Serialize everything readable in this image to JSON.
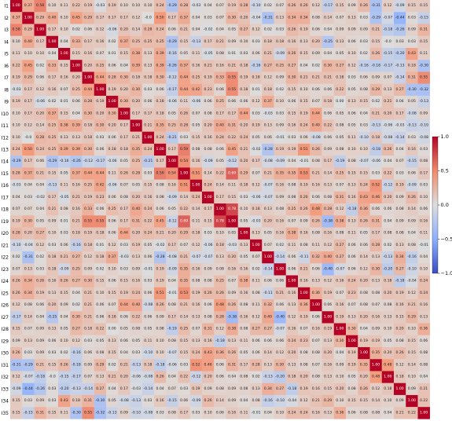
{
  "chart_data": {
    "type": "heatmap",
    "labels": [
      "I1",
      "I2",
      "I3",
      "I4",
      "I5",
      "I6",
      "I7",
      "I8",
      "I9",
      "I10",
      "I11",
      "I12",
      "I13",
      "I14",
      "I15",
      "I16",
      "I17",
      "I18",
      "I19",
      "I20",
      "I21",
      "I22",
      "I23",
      "I24",
      "I25",
      "I26",
      "I27",
      "I28",
      "I29",
      "I30",
      "I31",
      "I32",
      "I33",
      "I34",
      "I35"
    ],
    "color_range": [
      -1.0,
      1.0
    ],
    "colorbar_ticks": [
      "1.0",
      "0.5",
      "0.0",
      "−0.5",
      "−1.0"
    ],
    "colorbar_tick_values": [
      1.0,
      0.5,
      0.0,
      -0.5,
      -1.0
    ],
    "colormap": "coolwarm",
    "colormap_stops": [
      "#3b4cc0",
      "#dddddd",
      "#b40426"
    ],
    "rows": [
      [
        1,
        0.37,
        0.58,
        0.1,
        0.11,
        0.22,
        0.19,
        -0.03,
        0.19,
        0.1,
        0.1,
        0.1,
        0.24,
        -0.29,
        0.28,
        -0.03,
        0.04,
        0.07,
        0.19,
        0.28,
        -0.1,
        0.02,
        0.07,
        0.26,
        0.26,
        0.12,
        -0.17,
        0.15,
        0.09,
        0.26,
        -0.31,
        0.12,
        -0.09,
        0.15,
        0.15
      ],
      [
        0.37,
        1,
        0.29,
        0.4,
        0.1,
        0.45,
        0.29,
        0.17,
        0.17,
        0.17,
        0.12,
        -0.0,
        0.5,
        0.17,
        0.37,
        0.04,
        0.03,
        0.07,
        0.3,
        0.2,
        -0.04,
        -0.31,
        0.13,
        0.34,
        0.34,
        0.08,
        0.14,
        0.07,
        0.13,
        0.03,
        -0.29,
        -0.07,
        -0.44,
        0.03,
        -0.15
      ],
      [
        0.58,
        0.29,
        1,
        0.17,
        0.1,
        0.02,
        0.06,
        0.12,
        -0.06,
        0.2,
        0.14,
        0.28,
        0.24,
        0.06,
        0.21,
        0.04,
        -0.02,
        0.04,
        0.05,
        0.27,
        0.12,
        0.02,
        0.03,
        0.26,
        0.19,
        0.06,
        0.04,
        0.09,
        0.09,
        0.09,
        0.21,
        -0.18,
        -0.26,
        0.09,
        0.31
      ],
      [
        0.1,
        0.4,
        0.17,
        1,
        0.04,
        0.33,
        0.17,
        0.16,
        0.02,
        0.37,
        0.25,
        0.25,
        0.25,
        -0.29,
        0.15,
        -0.13,
        0.17,
        0.21,
        0.09,
        0.1,
        0.03,
        0.18,
        0.18,
        0.16,
        0.13,
        0.2,
        -0.25,
        0.13,
        0.06,
        0.03,
        0.15,
        -0.0,
        0.03,
        0.03,
        0.15
      ],
      [
        0.11,
        0.1,
        0.1,
        0.04,
        1,
        0.15,
        0.16,
        0.07,
        0.01,
        0.15,
        0.38,
        0.13,
        0.39,
        -0.16,
        0.05,
        0.11,
        -0.05,
        0.08,
        0.01,
        0.03,
        0.06,
        0.21,
        -0.09,
        0.26,
        0.15,
        0.09,
        0.04,
        0.05,
        0.1,
        0.02,
        0.26,
        -0.15,
        -0.2,
        0.43,
        0.11
      ],
      [
        0.22,
        0.45,
        0.02,
        0.33,
        0.15,
        1,
        0.2,
        0.25,
        0.06,
        0.04,
        0.39,
        0.13,
        0.39,
        -0.26,
        0.37,
        0.16,
        0.21,
        0.16,
        0.21,
        0.18,
        -0.16,
        0.27,
        0.25,
        0.27,
        0.04,
        0.02,
        0.3,
        0.27,
        0.12,
        -0.16,
        -0.18,
        -0.17,
        -0.13,
        0.18,
        -0.3
      ],
      [
        0.19,
        0.29,
        0.06,
        0.17,
        0.16,
        0.2,
        1,
        0.44,
        0.28,
        0.3,
        0.18,
        0.18,
        0.3,
        -0.12,
        0.44,
        0.25,
        0.19,
        0.33,
        0.55,
        0.19,
        0.18,
        0.12,
        0.09,
        0.3,
        0.21,
        0.21,
        0.21,
        0.18,
        0.03,
        0.06,
        0.09,
        0.07,
        -0.14,
        0.31,
        0.55
      ],
      [
        -0.03,
        0.17,
        0.12,
        0.16,
        0.07,
        0.25,
        0.44,
        1,
        0.19,
        0.2,
        0.3,
        0.03,
        0.06,
        -0.17,
        0.44,
        0.42,
        0.23,
        0.06,
        0.55,
        0.18,
        0.01,
        0.18,
        0.02,
        0.15,
        0.1,
        0.06,
        0.06,
        0.22,
        0.05,
        0.08,
        0.29,
        0.13,
        0.27,
        -0.3,
        -0.32
      ],
      [
        0.19,
        0.17,
        -0.06,
        0.02,
        0.01,
        0.06,
        0.28,
        0.19,
        1,
        0.3,
        0.2,
        0.06,
        0.18,
        -0.06,
        0.11,
        -0.06,
        0.06,
        0.25,
        0.06,
        0.06,
        0.12,
        0.37,
        0.1,
        0.06,
        0.15,
        0.07,
        0.18,
        0.0,
        0.13,
        0.15,
        0.02,
        0.21,
        0.04,
        0.05,
        -0.13
      ],
      [
        0.1,
        0.17,
        0.2,
        0.37,
        0.15,
        0.04,
        0.3,
        0.2,
        0.3,
        1,
        0.17,
        0.17,
        0.18,
        0.05,
        0.26,
        0.07,
        0.08,
        0.17,
        0.17,
        0.44,
        0.03,
        -0.03,
        0.03,
        0.15,
        0.19,
        0.44,
        0.06,
        0.05,
        0.06,
        0.04,
        0.21,
        0.2,
        0.17,
        -0.08,
        0.09
      ],
      [
        0.1,
        0.12,
        0.14,
        0.25,
        0.38,
        0.39,
        0.18,
        0.3,
        0.2,
        0.17,
        1,
        0.21,
        0.35,
        0.25,
        0.28,
        0.05,
        0.2,
        0.4,
        0.31,
        0.2,
        0.19,
        0.13,
        0.09,
        0.16,
        0.24,
        0.4,
        0.22,
        0.08,
        0.05,
        0.03,
        -0.13,
        -0.06,
        -0.03,
        -0.13,
        -0.1
      ],
      [
        0.1,
        -0.0,
        0.28,
        0.25,
        0.13,
        0.13,
        0.18,
        0.03,
        0.06,
        0.17,
        0.21,
        1,
        0.24,
        -0.21,
        0.03,
        0.15,
        0.16,
        0.24,
        0.22,
        0.24,
        0.05,
        0.06,
        -0.01,
        0.03,
        0.06,
        -0.08,
        0.06,
        0.05,
        0.11,
        -0.1,
        0.18,
        -0.08,
        -0.14,
        0.03,
        -0.08
      ],
      [
        0.24,
        0.5,
        0.24,
        0.25,
        0.39,
        0.39,
        0.3,
        0.06,
        0.18,
        0.18,
        0.35,
        0.24,
        1,
        0.17,
        0.59,
        0.08,
        0.08,
        0.06,
        0.45,
        0.21,
        -0.02,
        -0.28,
        0.19,
        0.19,
        0.51,
        0.26,
        0.09,
        0.08,
        0.1,
        0.1,
        -0.18,
        0.26,
        0.04,
        0.16,
        0.03
      ],
      [
        -0.29,
        0.17,
        0.06,
        -0.29,
        -0.16,
        -0.26,
        -0.12,
        -0.17,
        -0.06,
        0.05,
        0.25,
        -0.21,
        0.17,
        1,
        0.54,
        0.16,
        -0.09,
        0.05,
        -0.12,
        0.2,
        0.17,
        -0.08,
        -0.09,
        0.04,
        -0.01,
        0.08,
        0.17,
        -0.19,
        0.08,
        -0.07,
        -0.06,
        0.04,
        0.07,
        -0.15,
        0.08
      ],
      [
        0.28,
        0.37,
        0.21,
        0.15,
        0.05,
        0.37,
        0.44,
        0.44,
        0.11,
        0.26,
        0.28,
        0.03,
        0.59,
        0.54,
        1,
        0.51,
        0.14,
        0.22,
        0.69,
        0.29,
        0.07,
        0.21,
        0.35,
        0.35,
        0.53,
        0.21,
        0.14,
        0.25,
        0.15,
        0.15,
        0.03,
        0.22,
        0.03,
        0.06,
        0.17
      ],
      [
        -0.03,
        0.04,
        0.04,
        -0.13,
        0.11,
        0.16,
        0.25,
        0.42,
        -0.06,
        0.07,
        0.05,
        0.15,
        0.08,
        0.16,
        0.51,
        1,
        0.24,
        0.14,
        0.11,
        0.18,
        0.12,
        -0.07,
        0.16,
        0.08,
        0.19,
        0.16,
        0.13,
        0.07,
        0.13,
        0.24,
        0.52,
        -0.12,
        0.19,
        -0.09,
        0.03
      ],
      [
        0.04,
        0.03,
        -0.02,
        0.17,
        -0.05,
        0.21,
        0.19,
        0.23,
        0.06,
        0.08,
        0.2,
        0.16,
        0.08,
        -0.09,
        0.14,
        0.24,
        1,
        0.17,
        0.15,
        0.03,
        -0.06,
        -0.07,
        0.09,
        0.08,
        0.26,
        0.06,
        0.08,
        0.31,
        0.16,
        0.43,
        0.46,
        0.2,
        0.09,
        0.26,
        0.1
      ],
      [
        0.07,
        0.07,
        0.04,
        0.21,
        0.08,
        0.16,
        0.33,
        0.06,
        0.25,
        0.17,
        0.4,
        0.24,
        0.06,
        0.05,
        0.22,
        0.14,
        0.17,
        1,
        0.78,
        0.1,
        0.18,
        0.13,
        0.08,
        0.25,
        0.26,
        0.48,
        0.28,
        0.12,
        -0.18,
        0.36,
        0.06,
        0.06,
        0.08,
        0.14,
        0.06
      ],
      [
        0.19,
        0.3,
        0.05,
        0.09,
        0.01,
        0.21,
        0.55,
        0.55,
        0.06,
        0.17,
        0.31,
        0.22,
        0.45,
        -0.12,
        0.69,
        0.11,
        0.15,
        0.78,
        1,
        0.05,
        -0.03,
        0.2,
        0.16,
        0.07,
        0.09,
        0.26,
        -0.38,
        0.38,
        0.13,
        0.26,
        0.31,
        0.04,
        0.09,
        0.09,
        0.16
      ],
      [
        0.28,
        0.2,
        0.27,
        0.1,
        0.03,
        0.18,
        0.19,
        0.18,
        0.06,
        0.44,
        0.2,
        0.24,
        0.21,
        0.2,
        0.29,
        0.18,
        0.03,
        0.1,
        0.05,
        1,
        0.13,
        0.05,
        0.16,
        0.38,
        0.16,
        0.08,
        0.16,
        0.08,
        0.11,
        0.05,
        0.17,
        0.08,
        0.08,
        0.04,
        0.11
      ],
      [
        -0.1,
        -0.04,
        0.12,
        0.03,
        0.06,
        -0.16,
        0.18,
        0.01,
        0.12,
        0.03,
        0.19,
        0.05,
        -0.02,
        0.17,
        0.07,
        0.12,
        -0.06,
        0.18,
        -0.03,
        0.13,
        1,
        0.07,
        0.02,
        0.11,
        0.08,
        0.11,
        0.12,
        0.27,
        0.06,
        0.06,
        0.28,
        0.02,
        0.13,
        0.08,
        -0.01
      ],
      [
        0.02,
        -0.31,
        0.02,
        0.18,
        0.21,
        0.27,
        0.12,
        0.18,
        0.37,
        -0.03,
        0.13,
        0.06,
        -0.28,
        -0.08,
        0.21,
        -0.07,
        -0.07,
        0.13,
        0.2,
        0.05,
        0.07,
        1,
        -0.14,
        0.06,
        -0.11,
        0.32,
        0.4,
        0.27,
        0.06,
        0.14,
        0.13,
        -0.13,
        0.34,
        -0.16,
        0.04
      ],
      [
        0.07,
        0.13,
        0.03,
        0.18,
        -0.09,
        0.25,
        0.09,
        0.02,
        0.1,
        0.03,
        0.09,
        -0.01,
        0.19,
        -0.09,
        0.35,
        0.16,
        0.09,
        0.08,
        0.16,
        0.16,
        0.02,
        -0.14,
        1,
        0.06,
        0.21,
        0.06,
        -0.4,
        -0.07,
        0.06,
        0.12,
        0.3,
        -0.2,
        0.27,
        -0.1,
        0.1
      ],
      [
        0.26,
        0.34,
        0.26,
        0.16,
        0.26,
        0.27,
        0.3,
        0.15,
        0.06,
        0.15,
        0.16,
        0.03,
        0.19,
        0.04,
        0.35,
        0.08,
        0.08,
        0.25,
        0.07,
        0.38,
        0.11,
        0.06,
        0.06,
        1,
        0.16,
        0.13,
        0.12,
        0.16,
        0.24,
        0.2,
        0.13,
        0.18,
        -0.18,
        -0.04,
        0.24
      ],
      [
        0.26,
        0.34,
        0.19,
        0.13,
        0.15,
        0.04,
        0.21,
        0.1,
        0.15,
        0.19,
        0.24,
        0.06,
        0.51,
        -0.01,
        0.53,
        0.19,
        0.26,
        0.26,
        0.09,
        0.16,
        0.08,
        -0.11,
        0.21,
        0.16,
        1,
        0.36,
        0.19,
        0.07,
        0.23,
        0.08,
        0.08,
        0.2,
        0.19,
        0.12,
        0.24
      ],
      [
        0.12,
        0.08,
        0.06,
        0.2,
        0.09,
        0.02,
        0.21,
        0.06,
        0.07,
        0.44,
        0.4,
        -0.08,
        0.26,
        0.08,
        0.21,
        0.16,
        0.06,
        0.48,
        0.26,
        0.08,
        0.11,
        0.32,
        0.06,
        0.13,
        0.36,
        1,
        0.06,
        0.16,
        0.07,
        0.08,
        0.07,
        0.08,
        0.16,
        0.21,
        0.16
      ],
      [
        -0.17,
        0.14,
        0.04,
        -0.25,
        0.04,
        0.3,
        0.21,
        0.06,
        0.18,
        0.06,
        0.22,
        0.06,
        0.09,
        0.17,
        0.14,
        0.13,
        0.08,
        0.28,
        -0.38,
        0.16,
        0.12,
        0.4,
        -0.4,
        0.12,
        0.19,
        0.06,
        1,
        0.19,
        0.13,
        0.2,
        0.16,
        0.13,
        0.15,
        0.29,
        0.13
      ],
      [
        0.15,
        0.07,
        0.09,
        0.13,
        0.05,
        0.27,
        0.18,
        0.22,
        0.0,
        0.05,
        0.08,
        0.05,
        0.08,
        -0.19,
        0.25,
        0.07,
        0.31,
        0.12,
        0.38,
        0.08,
        0.27,
        0.27,
        -0.07,
        0.16,
        0.07,
        0.16,
        0.19,
        1,
        0.3,
        0.04,
        0.09,
        0.1,
        0.2,
        0.1,
        0.36
      ],
      [
        0.09,
        0.13,
        0.09,
        0.06,
        0.1,
        0.12,
        0.03,
        0.05,
        0.13,
        0.06,
        0.05,
        0.11,
        0.1,
        0.08,
        0.15,
        0.13,
        0.16,
        -0.18,
        0.13,
        0.11,
        0.06,
        0.06,
        0.06,
        0.24,
        0.23,
        0.07,
        0.13,
        0.3,
        1,
        0.19,
        0.19,
        0.05,
        0.08,
        0.15,
        0.06
      ],
      [
        0.26,
        0.03,
        0.09,
        0.03,
        0.02,
        -0.16,
        0.06,
        0.08,
        0.15,
        0.04,
        0.03,
        -0.1,
        0.1,
        -0.07,
        0.15,
        0.24,
        0.43,
        0.36,
        0.26,
        0.05,
        0.06,
        0.14,
        0.12,
        0.2,
        0.08,
        0.08,
        0.2,
        0.04,
        0.19,
        1,
        0.35,
        0.2,
        0.26,
        0.15,
        0.08
      ],
      [
        -0.31,
        -0.29,
        0.21,
        0.15,
        0.26,
        -0.18,
        0.09,
        0.29,
        0.02,
        0.21,
        -0.13,
        0.18,
        -0.18,
        -0.06,
        0.03,
        0.52,
        0.46,
        0.06,
        0.31,
        0.17,
        0.28,
        0.13,
        0.3,
        0.13,
        0.08,
        0.07,
        0.16,
        0.09,
        0.19,
        0.35,
        1,
        0.48,
        0.12,
        0.14,
        0.08
      ],
      [
        0.12,
        -0.07,
        -0.18,
        -0.0,
        -0.15,
        -0.17,
        0.07,
        0.13,
        0.21,
        0.2,
        -0.06,
        -0.08,
        0.26,
        0.04,
        0.22,
        -0.12,
        0.2,
        0.06,
        0.04,
        0.08,
        0.02,
        -0.13,
        -0.2,
        0.18,
        0.2,
        0.08,
        0.13,
        0.1,
        0.05,
        0.2,
        0.48,
        1,
        0.18,
        0.1,
        0.04
      ],
      [
        -0.09,
        -0.44,
        -0.26,
        0.03,
        -0.2,
        -0.13,
        -0.14,
        0.27,
        0.04,
        0.17,
        -0.03,
        -0.14,
        0.04,
        0.07,
        0.03,
        0.19,
        0.09,
        0.08,
        0.09,
        0.08,
        0.13,
        0.34,
        0.27,
        -0.18,
        0.19,
        0.16,
        0.15,
        0.2,
        0.08,
        0.26,
        0.12,
        0.18,
        1,
        0.09,
        0.21
      ],
      [
        0.15,
        0.03,
        0.09,
        0.03,
        0.43,
        0.18,
        0.31,
        -0.3,
        0.05,
        -0.08,
        -0.13,
        0.03,
        0.16,
        -0.15,
        0.06,
        -0.09,
        0.26,
        0.14,
        0.09,
        0.04,
        0.08,
        -0.16,
        -0.1,
        -0.04,
        0.12,
        0.21,
        0.29,
        0.1,
        0.15,
        0.15,
        0.14,
        0.1,
        0.09,
        1,
        0.22
      ],
      [
        0.15,
        -0.15,
        0.31,
        0.15,
        0.11,
        -0.3,
        0.55,
        -0.32,
        -0.13,
        0.09,
        -0.1,
        -0.08,
        0.03,
        0.08,
        0.17,
        0.03,
        0.1,
        0.06,
        0.16,
        0.11,
        -0.01,
        0.04,
        0.1,
        0.24,
        0.24,
        0.16,
        0.13,
        0.36,
        0.06,
        0.08,
        0.08,
        0.04,
        0.21,
        0.22,
        1
      ]
    ]
  }
}
